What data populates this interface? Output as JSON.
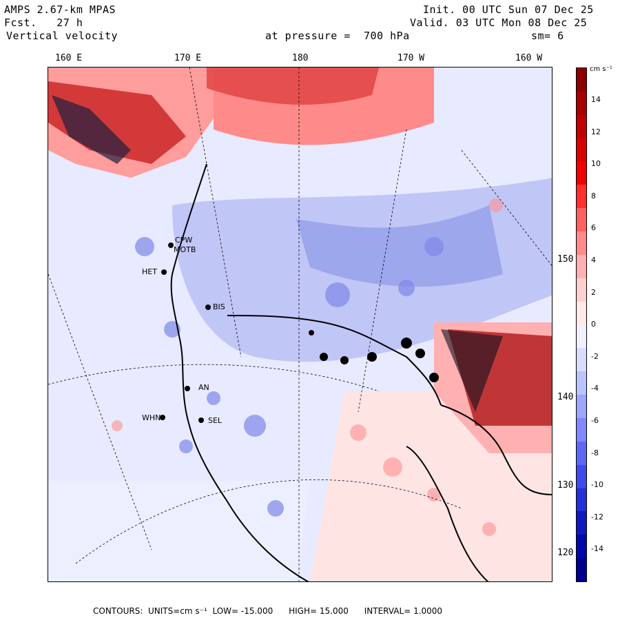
{
  "header": {
    "model": "AMPS 2.67-km MPAS",
    "fcst_label": "Fcst.",
    "fcst_value": "27 h",
    "variable": "Vertical velocity",
    "pressure": "at pressure =  700 hPa",
    "init": "Init. 00 UTC Sun 07 Dec 25",
    "valid": "Valid. 03 UTC Mon 08 Dec 25",
    "smoothing": "sm= 6"
  },
  "lon_labels": [
    "160 E",
    "170 E",
    "180",
    "170 W",
    "160 W"
  ],
  "lat_labels": [
    "150 W",
    "140 W",
    "130 W",
    "120 W"
  ],
  "stations": [
    "CPW",
    "MOTB",
    "HET",
    "BIS",
    "AN",
    "WHN",
    "SEL"
  ],
  "colorbar": {
    "units": "cm s⁻¹",
    "labels": [
      "14",
      "12",
      "10",
      "8",
      "6",
      "4",
      "2",
      "0",
      "-2",
      "-4",
      "-6",
      "-8",
      "-10",
      "-12",
      "-14"
    ],
    "colors": [
      "#8b0000",
      "#a80000",
      "#c00000",
      "#d80000",
      "#f00000",
      "#ff3030",
      "#ff6060",
      "#ff8a8a",
      "#ffb0b0",
      "#ffd0d0",
      "#ffeaea",
      "#f0f0ff",
      "#d8dcff",
      "#bcc4ff",
      "#9ca6ff",
      "#7f88ff",
      "#5f68f5",
      "#3f4ae8",
      "#2430d8",
      "#1018c0",
      "#0008a8",
      "#000090"
    ]
  },
  "footer": {
    "contours_label": "CONTOURS:",
    "units": "UNITS=cm s⁻¹",
    "low": "LOW= -15.000",
    "high": "HIGH= 15.000",
    "interval": "INTERVAL= 1.0000"
  }
}
